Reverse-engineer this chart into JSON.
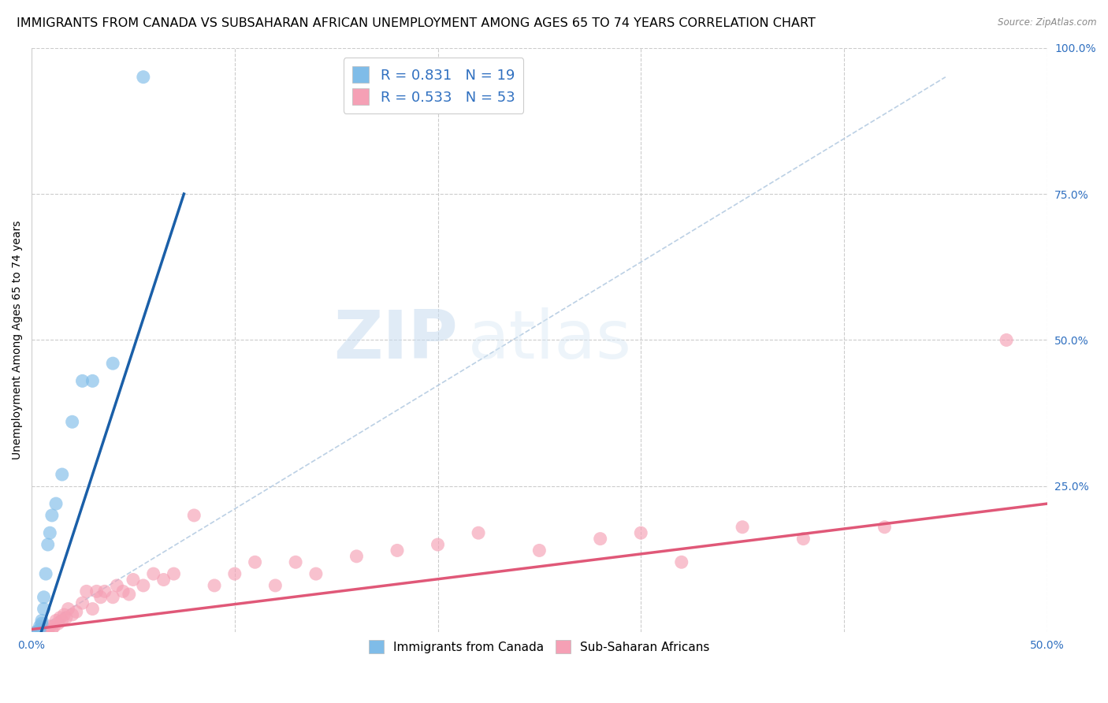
{
  "title": "IMMIGRANTS FROM CANADA VS SUBSAHARAN AFRICAN UNEMPLOYMENT AMONG AGES 65 TO 74 YEARS CORRELATION CHART",
  "source": "Source: ZipAtlas.com",
  "ylabel": "Unemployment Among Ages 65 to 74 years",
  "watermark_zip": "ZIP",
  "watermark_atlas": "atlas",
  "blue_label": "Immigrants from Canada",
  "pink_label": "Sub-Saharan Africans",
  "blue_R": 0.831,
  "blue_N": 19,
  "pink_R": 0.533,
  "pink_N": 53,
  "xlim": [
    0.0,
    0.5
  ],
  "ylim": [
    0.0,
    1.0
  ],
  "blue_scatter_x": [
    0.002,
    0.003,
    0.004,
    0.004,
    0.005,
    0.005,
    0.006,
    0.006,
    0.007,
    0.008,
    0.009,
    0.01,
    0.012,
    0.015,
    0.02,
    0.025,
    0.03,
    0.04,
    0.055
  ],
  "blue_scatter_y": [
    0.0,
    0.0,
    0.005,
    0.01,
    0.015,
    0.02,
    0.04,
    0.06,
    0.1,
    0.15,
    0.17,
    0.2,
    0.22,
    0.27,
    0.36,
    0.43,
    0.43,
    0.46,
    0.95
  ],
  "pink_scatter_x": [
    0.002,
    0.003,
    0.004,
    0.005,
    0.006,
    0.007,
    0.008,
    0.009,
    0.01,
    0.011,
    0.012,
    0.013,
    0.014,
    0.015,
    0.016,
    0.017,
    0.018,
    0.02,
    0.022,
    0.025,
    0.027,
    0.03,
    0.032,
    0.034,
    0.036,
    0.04,
    0.042,
    0.045,
    0.048,
    0.05,
    0.055,
    0.06,
    0.065,
    0.07,
    0.08,
    0.09,
    0.1,
    0.11,
    0.12,
    0.13,
    0.14,
    0.16,
    0.18,
    0.2,
    0.22,
    0.25,
    0.28,
    0.3,
    0.32,
    0.35,
    0.38,
    0.42,
    0.48
  ],
  "pink_scatter_y": [
    0.0,
    0.0,
    0.0,
    0.005,
    0.0,
    0.005,
    0.0,
    0.01,
    0.005,
    0.01,
    0.02,
    0.015,
    0.025,
    0.02,
    0.03,
    0.025,
    0.04,
    0.03,
    0.035,
    0.05,
    0.07,
    0.04,
    0.07,
    0.06,
    0.07,
    0.06,
    0.08,
    0.07,
    0.065,
    0.09,
    0.08,
    0.1,
    0.09,
    0.1,
    0.2,
    0.08,
    0.1,
    0.12,
    0.08,
    0.12,
    0.1,
    0.13,
    0.14,
    0.15,
    0.17,
    0.14,
    0.16,
    0.17,
    0.12,
    0.18,
    0.16,
    0.18,
    0.5
  ],
  "blue_line_x": [
    0.0,
    0.075
  ],
  "blue_line_y": [
    -0.05,
    0.75
  ],
  "pink_line_x": [
    0.0,
    0.5
  ],
  "pink_line_y": [
    0.005,
    0.22
  ],
  "diag_line_x": [
    0.0,
    0.45
  ],
  "diag_line_y": [
    0.0,
    0.95
  ],
  "blue_color": "#7FBCE8",
  "pink_color": "#F5A0B5",
  "blue_line_color": "#1A5FA8",
  "pink_line_color": "#E05878",
  "diag_line_color": "#B0C8E0",
  "background_color": "#FFFFFF",
  "grid_color": "#CCCCCC",
  "title_fontsize": 11.5,
  "axis_label_fontsize": 10,
  "tick_fontsize": 10,
  "legend_fontsize": 13
}
